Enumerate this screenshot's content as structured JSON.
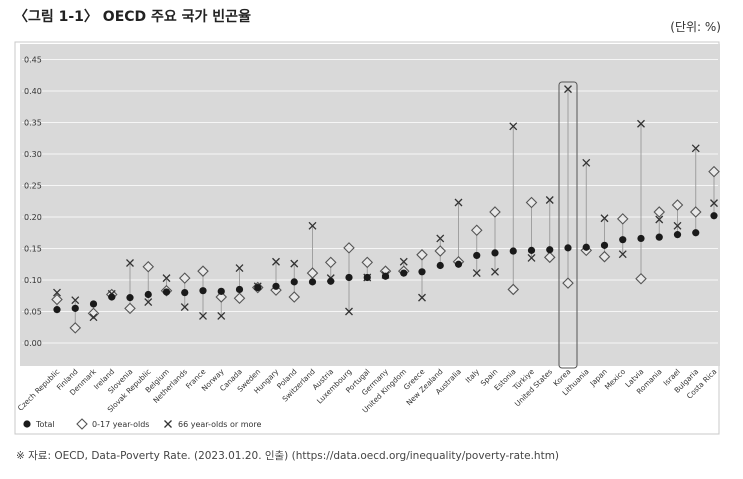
{
  "header": {
    "title": "〈그림 1-1〉 OECD 주요 국가 빈곤율",
    "unit": "(단위: %)"
  },
  "footer": {
    "source": "※ 자료: OECD, Data-Poverty Rate. (2023.01.20. 인출) (https://data.oecd.org/inequality/poverty-rate.htm)"
  },
  "chart_data": {
    "type": "scatter",
    "ylim": [
      0,
      0.45
    ],
    "yticks": [
      "0.00",
      "0.05",
      "0.10",
      "0.15",
      "0.20",
      "0.25",
      "0.30",
      "0.35",
      "0.40",
      "0.45"
    ],
    "grid": true,
    "legend_position": "bottom-left",
    "highlight": "Korea",
    "categories": [
      "Czech Republic",
      "Finland",
      "Denmark",
      "Ireland",
      "Slovenia",
      "Slovak Republic",
      "Belgium",
      "Netherlands",
      "France",
      "Norway",
      "Canada",
      "Sweden",
      "Hungary",
      "Poland",
      "Switzerland",
      "Austria",
      "Luxembourg",
      "Portugal",
      "Germany",
      "United Kingdom",
      "Greece",
      "New Zealand",
      "Australia",
      "Italy",
      "Spain",
      "Estonia",
      "Türkiye",
      "United States",
      "Korea",
      "Lithuania",
      "Japan",
      "Mexico",
      "Latvia",
      "Romania",
      "Israel",
      "Bulgaria",
      "Costa Rica"
    ],
    "series": [
      {
        "name": "Total",
        "marker": "filled-circle",
        "values": [
          0.053,
          0.055,
          0.062,
          0.073,
          0.072,
          0.077,
          0.081,
          0.08,
          0.083,
          0.082,
          0.085,
          0.088,
          0.09,
          0.097,
          0.097,
          0.098,
          0.104,
          0.104,
          0.106,
          0.111,
          0.113,
          0.123,
          0.125,
          0.139,
          0.143,
          0.146,
          0.147,
          0.148,
          0.151,
          0.152,
          0.155,
          0.164,
          0.166,
          0.168,
          0.172,
          0.175,
          0.202
        ]
      },
      {
        "name": "0-17 year-olds",
        "marker": "diamond",
        "values": [
          0.069,
          0.024,
          0.047,
          0.077,
          0.055,
          0.121,
          0.083,
          0.103,
          0.114,
          0.073,
          0.071,
          0.088,
          0.084,
          0.073,
          0.111,
          0.128,
          0.151,
          0.128,
          0.114,
          0.114,
          0.14,
          0.146,
          0.129,
          0.179,
          0.208,
          0.085,
          0.223,
          0.136,
          0.095,
          0.147,
          0.137,
          0.197,
          0.102,
          0.208,
          0.219,
          0.208,
          0.272
        ]
      },
      {
        "name": "66 year-olds or more",
        "marker": "x",
        "values": [
          0.08,
          0.068,
          0.041,
          0.078,
          0.127,
          0.065,
          0.103,
          0.057,
          0.043,
          0.043,
          0.119,
          0.09,
          0.129,
          0.126,
          0.186,
          0.103,
          0.05,
          0.104,
          0.108,
          0.129,
          0.072,
          0.166,
          0.223,
          0.111,
          0.113,
          0.344,
          0.135,
          0.227,
          0.403,
          0.286,
          0.198,
          0.141,
          0.348,
          0.196,
          0.186,
          0.309,
          0.222
        ]
      }
    ]
  }
}
